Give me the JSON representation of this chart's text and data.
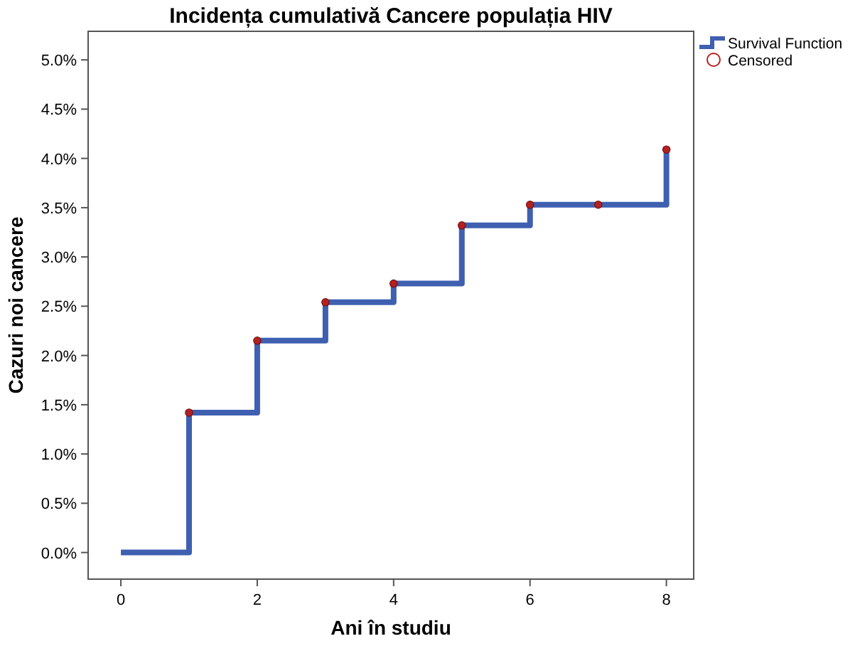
{
  "chart_data": {
    "type": "step",
    "title": "Incidența cumulativă Cancere populația HIV",
    "xlabel": "Ani în studiu",
    "ylabel": "Cazuri noi cancere",
    "xlim": [
      -0.48,
      8.4
    ],
    "xticks": [
      0,
      2,
      4,
      6,
      8
    ],
    "ylim": [
      -0.27,
      5.29
    ],
    "yticks": [
      {
        "value": 0,
        "label": "0.0%"
      },
      {
        "value": 0.5,
        "label": "0.5%"
      },
      {
        "value": 1,
        "label": "1.0%"
      },
      {
        "value": 1.5,
        "label": "1.5%"
      },
      {
        "value": 2,
        "label": "2.0%"
      },
      {
        "value": 2.5,
        "label": "2.5%"
      },
      {
        "value": 3,
        "label": "3.0%"
      },
      {
        "value": 3.5,
        "label": "3.5%"
      },
      {
        "value": 4,
        "label": "4.0%"
      },
      {
        "value": 4.5,
        "label": "4.5%"
      },
      {
        "value": 5,
        "label": "5.0%"
      }
    ],
    "legend": "top right",
    "grid": false,
    "series": [
      {
        "name": "Survival Function",
        "type": "step",
        "color": "#3f5fb0",
        "x": [
          0,
          1,
          2,
          3,
          4,
          5,
          6,
          7,
          8
        ],
        "values": [
          0,
          1.42,
          2.15,
          2.54,
          2.73,
          3.32,
          3.53,
          3.53,
          4.09
        ]
      },
      {
        "name": "Censored",
        "type": "scatter",
        "marker": "circle",
        "color": "#b22222",
        "x": [
          1,
          2,
          3,
          4,
          5,
          6,
          7,
          8
        ],
        "values": [
          1.42,
          2.15,
          2.54,
          2.73,
          3.32,
          3.53,
          3.53,
          4.09
        ]
      }
    ]
  }
}
